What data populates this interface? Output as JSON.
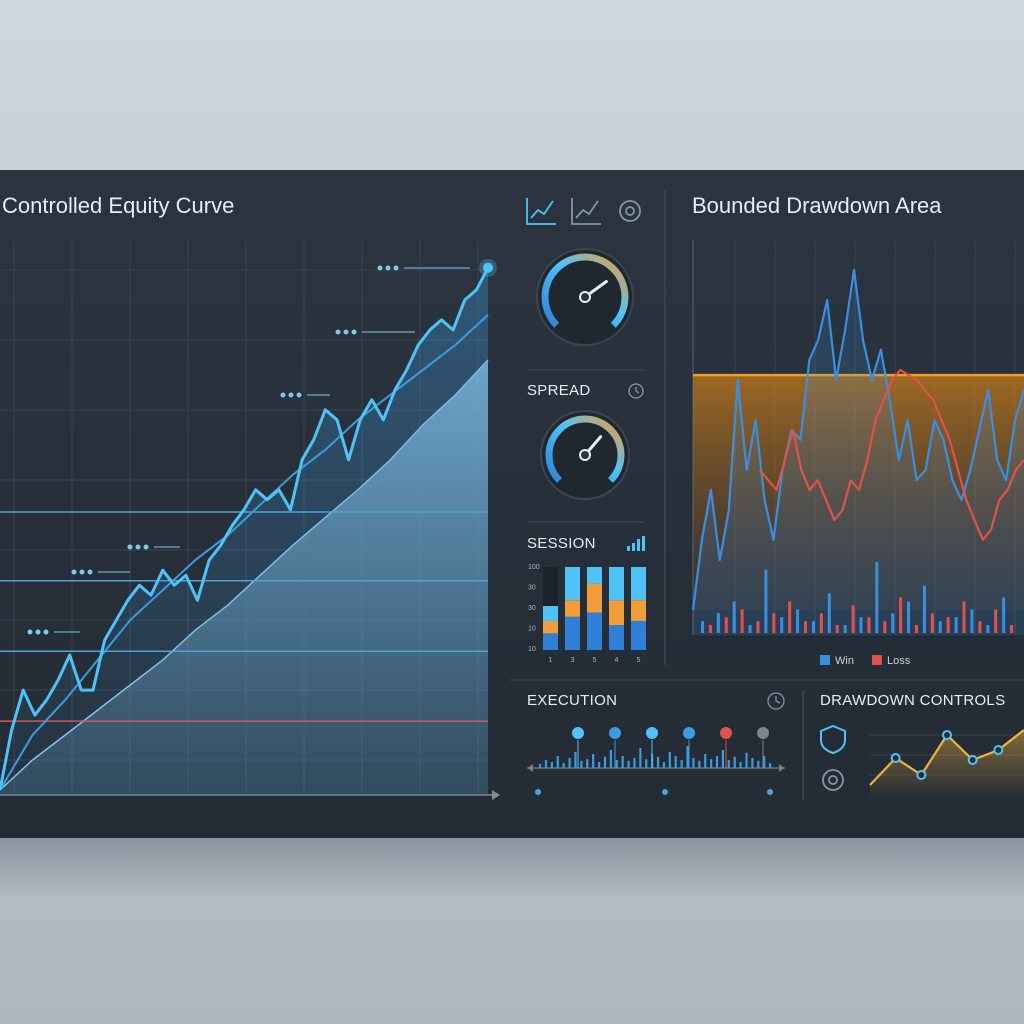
{
  "equity": {
    "title": "Controlled Equity Curve",
    "line": {
      "color": "#4fc3f7",
      "values": [
        0.9,
        11.7,
        18.9,
        14.4,
        17.1,
        20.7,
        25.2,
        18.9,
        18.9,
        27.9,
        31.5,
        35.1,
        37.8,
        36.0,
        40.5,
        37.8,
        39.6,
        35.1,
        42.3,
        45.0,
        48.6,
        51.4,
        55.0,
        53.2,
        55.0,
        51.4,
        60.4,
        64.0,
        69.4,
        67.6,
        60.4,
        67.6,
        71.2,
        67.6,
        73.0,
        76.6,
        81.1,
        83.8,
        85.6,
        83.8,
        89.2,
        91.0,
        95.0
      ]
    },
    "trend": {
      "color": "#3d9be0",
      "values": [
        0.9,
        10.8,
        17.1,
        24.3,
        31.5,
        36.9,
        42.3,
        46.8,
        52.3,
        57.7,
        62.2,
        67.6,
        72.1,
        76.6,
        81.1,
        86.5
      ]
    },
    "area": {
      "color": "#8fc7e6",
      "values": [
        0.9,
        6.3,
        10.8,
        15.3,
        19.8,
        24.3,
        29.7,
        34.2,
        39.6,
        45.0,
        50.0,
        55.0,
        60.4,
        66.7,
        72.1,
        78.4
      ]
    },
    "levels": [
      {
        "value": 51.0,
        "color": "#4fa3d8"
      },
      {
        "value": 38.6,
        "color": "#4fa3d8"
      },
      {
        "value": 25.9,
        "color": "#4fa3d8"
      },
      {
        "value": 13.3,
        "color": "#d9534f"
      }
    ]
  },
  "gauges": [
    {
      "value": 70
    },
    {
      "value": 65
    }
  ],
  "spread": {
    "title": "SPREAD"
  },
  "session": {
    "title": "SESSION",
    "ytick_labels": [
      "100",
      "30",
      "30",
      "10",
      "10"
    ],
    "xtick_labels": [
      "1",
      "3",
      "5",
      "4",
      "5"
    ],
    "colors": [
      "#2f80d8",
      "#f39c3a",
      "#4fc3f7"
    ],
    "stacks": [
      [
        20,
        15,
        18
      ],
      [
        40,
        20,
        40
      ],
      [
        45,
        35,
        20
      ],
      [
        30,
        30,
        40
      ],
      [
        35,
        25,
        40
      ]
    ]
  },
  "drawdown": {
    "title": "Bounded Drawdown Area",
    "limit": 65.8,
    "limit_color": "#f0a020",
    "series": [
      {
        "name": "Win",
        "color": "#3b8fe0",
        "line": [
          6.3,
          24.1,
          36.7,
          19.0,
          31.6,
          64.6,
          41.8,
          54.4,
          34.2,
          24.1,
          41.8,
          51.9,
          49.4,
          69.6,
          74.7,
          84.8,
          64.6,
          77.2,
          92.4,
          74.7,
          64.6,
          72.2,
          59.5,
          44.3,
          54.4,
          39.2,
          41.8,
          54.4,
          49.4,
          39.2,
          34.2,
          41.8,
          51.9,
          62.0,
          44.3,
          39.2,
          54.4,
          62.0
        ],
        "bars": [
          3,
          5,
          8,
          2,
          16,
          4,
          6,
          3,
          10,
          2,
          4,
          18,
          5,
          8,
          12,
          3,
          4,
          6,
          2,
          9
        ]
      },
      {
        "name": "Loss",
        "color": "#e0524a",
        "line": [
          41.8,
          39.2,
          36.7,
          44.3,
          51.9,
          41.8,
          36.7,
          39.2,
          34.2,
          29.1,
          31.6,
          39.2,
          36.7,
          44.3,
          54.4,
          59.5,
          64.6,
          67.1,
          65.8,
          64.6,
          62.0,
          59.5,
          54.4,
          49.4,
          41.8,
          34.2,
          29.1,
          24.1,
          26.6,
          34.2,
          36.7,
          41.8,
          44.3
        ],
        "bars": [
          2,
          4,
          6,
          3,
          5,
          8,
          3,
          5,
          2,
          7,
          4,
          3,
          9,
          2,
          5,
          4,
          8,
          3,
          6,
          2
        ]
      }
    ]
  },
  "execution": {
    "title": "EXECUTION",
    "markers": [
      {
        "color": "#4fc3f7"
      },
      {
        "color": "#3d9be0"
      },
      {
        "color": "#4fc3f7"
      },
      {
        "color": "#3d9be0"
      },
      {
        "color": "#e0524a"
      },
      {
        "color": "#7a8590"
      }
    ],
    "bars": [
      10,
      20,
      15,
      30,
      12,
      25,
      40,
      18,
      22,
      35,
      15,
      28,
      45,
      20,
      30,
      18,
      25,
      50,
      22,
      35,
      28,
      15,
      40,
      30,
      20,
      55,
      25,
      18,
      35,
      22,
      30,
      45,
      20,
      28,
      15,
      38,
      25,
      18,
      30,
      12
    ]
  },
  "controls": {
    "title": "DRAWDOWN CONTROLS",
    "color": "#f2b33d",
    "point_color": "#4fc3f7",
    "values": [
      18.8,
      52.5,
      31.3,
      81.3,
      50.0,
      62.5,
      87.5
    ]
  }
}
